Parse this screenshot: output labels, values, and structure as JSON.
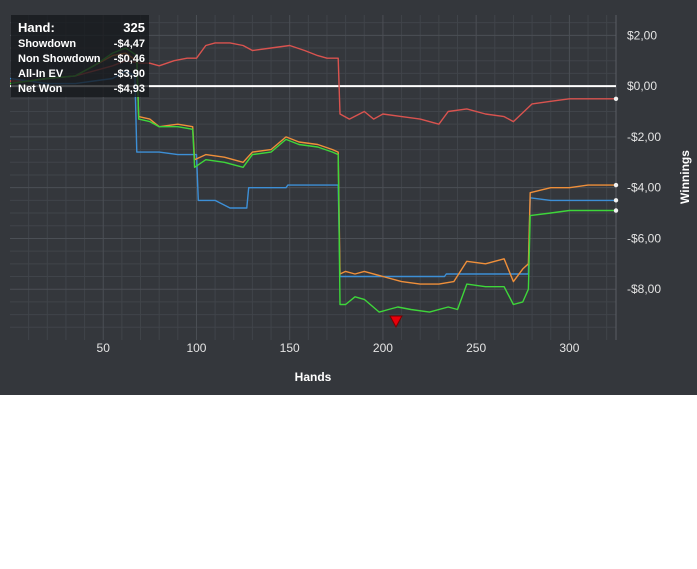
{
  "info_box": {
    "hand_label": "Hand:",
    "hand_value": "325",
    "rows": [
      {
        "label": "Showdown",
        "value": "-$4,47"
      },
      {
        "label": "Non Showdown",
        "value": "-$0,46"
      },
      {
        "label": "All-In EV",
        "value": "-$3,90"
      },
      {
        "label": "Net Won",
        "value": "-$4,93"
      }
    ]
  },
  "chart_data": {
    "type": "line",
    "xlabel": "Hands",
    "ylabel": "Winnings",
    "xlim": [
      0,
      325
    ],
    "ylim": [
      -10,
      2.8
    ],
    "x_ticks": [
      {
        "value": 50,
        "label": "50"
      },
      {
        "value": 100,
        "label": "100"
      },
      {
        "value": 150,
        "label": "150"
      },
      {
        "value": 200,
        "label": "200"
      },
      {
        "value": 250,
        "label": "250"
      },
      {
        "value": 300,
        "label": "300"
      }
    ],
    "y_ticks": [
      {
        "value": 2,
        "label": "$2,00"
      },
      {
        "value": 0,
        "label": "$0,00"
      },
      {
        "value": -2,
        "label": "-$2,00"
      },
      {
        "value": -4,
        "label": "-$4,00"
      },
      {
        "value": -6,
        "label": "-$6,00"
      },
      {
        "value": -8,
        "label": "-$8,00"
      }
    ],
    "grid": true,
    "legend": "none",
    "colors": {
      "background": "#34373c",
      "grid": "#4b4f55",
      "zero_line": "#ffffff",
      "showdown": "#3d8fd6",
      "non_showdown": "#d9534f",
      "all_in_ev": "#ef8f3a",
      "net_won": "#3ed63a",
      "marker": "#e8000b"
    },
    "series": [
      {
        "key": "non_showdown",
        "points": [
          [
            0,
            0.2
          ],
          [
            10,
            0.2
          ],
          [
            20,
            0.3
          ],
          [
            35,
            0.4
          ],
          [
            45,
            0.6
          ],
          [
            55,
            0.8
          ],
          [
            62,
            1.0
          ],
          [
            70,
            0.9
          ],
          [
            75,
            0.9
          ],
          [
            80,
            0.8
          ],
          [
            88,
            1.0
          ],
          [
            95,
            1.1
          ],
          [
            100,
            1.1
          ],
          [
            105,
            1.6
          ],
          [
            110,
            1.7
          ],
          [
            118,
            1.7
          ],
          [
            125,
            1.6
          ],
          [
            130,
            1.4
          ],
          [
            140,
            1.5
          ],
          [
            150,
            1.6
          ],
          [
            158,
            1.4
          ],
          [
            165,
            1.2
          ],
          [
            170,
            1.1
          ],
          [
            176,
            1.1
          ],
          [
            177,
            -1.1
          ],
          [
            182,
            -1.3
          ],
          [
            190,
            -1.0
          ],
          [
            195,
            -1.3
          ],
          [
            200,
            -1.1
          ],
          [
            210,
            -1.2
          ],
          [
            220,
            -1.3
          ],
          [
            230,
            -1.5
          ],
          [
            235,
            -1.0
          ],
          [
            245,
            -0.9
          ],
          [
            255,
            -1.1
          ],
          [
            265,
            -1.2
          ],
          [
            270,
            -1.4
          ],
          [
            280,
            -0.7
          ],
          [
            290,
            -0.6
          ],
          [
            300,
            -0.5
          ],
          [
            310,
            -0.5
          ],
          [
            325,
            -0.5
          ]
        ]
      },
      {
        "key": "showdown",
        "points": [
          [
            0,
            0.3
          ],
          [
            10,
            0.2
          ],
          [
            20,
            0.1
          ],
          [
            35,
            0.1
          ],
          [
            45,
            0.2
          ],
          [
            55,
            0.3
          ],
          [
            62,
            0.6
          ],
          [
            67,
            0.4
          ],
          [
            68,
            -2.6
          ],
          [
            80,
            -2.6
          ],
          [
            90,
            -2.7
          ],
          [
            100,
            -2.7
          ],
          [
            101,
            -4.5
          ],
          [
            110,
            -4.5
          ],
          [
            118,
            -4.8
          ],
          [
            127,
            -4.8
          ],
          [
            128,
            -4.0
          ],
          [
            135,
            -4.0
          ],
          [
            148,
            -4.0
          ],
          [
            149,
            -3.9
          ],
          [
            176,
            -3.9
          ],
          [
            177,
            -7.5
          ],
          [
            200,
            -7.5
          ],
          [
            220,
            -7.5
          ],
          [
            233,
            -7.5
          ],
          [
            234,
            -7.4
          ],
          [
            278,
            -7.4
          ],
          [
            279,
            -4.4
          ],
          [
            290,
            -4.5
          ],
          [
            310,
            -4.5
          ],
          [
            325,
            -4.5
          ]
        ]
      },
      {
        "key": "all_in_ev",
        "points": [
          [
            0,
            0.1
          ],
          [
            10,
            0.2
          ],
          [
            20,
            0.3
          ],
          [
            35,
            0.4
          ],
          [
            45,
            0.8
          ],
          [
            55,
            1.2
          ],
          [
            62,
            1.3
          ],
          [
            68,
            1.0
          ],
          [
            69,
            -1.2
          ],
          [
            75,
            -1.3
          ],
          [
            80,
            -1.6
          ],
          [
            90,
            -1.5
          ],
          [
            98,
            -1.6
          ],
          [
            99,
            -2.9
          ],
          [
            105,
            -2.7
          ],
          [
            115,
            -2.8
          ],
          [
            125,
            -3.0
          ],
          [
            130,
            -2.6
          ],
          [
            140,
            -2.5
          ],
          [
            148,
            -2.0
          ],
          [
            155,
            -2.2
          ],
          [
            165,
            -2.3
          ],
          [
            173,
            -2.5
          ],
          [
            176,
            -2.6
          ],
          [
            177,
            -7.4
          ],
          [
            180,
            -7.3
          ],
          [
            185,
            -7.4
          ],
          [
            190,
            -7.3
          ],
          [
            200,
            -7.5
          ],
          [
            210,
            -7.7
          ],
          [
            220,
            -7.8
          ],
          [
            230,
            -7.8
          ],
          [
            238,
            -7.7
          ],
          [
            245,
            -6.9
          ],
          [
            255,
            -7.0
          ],
          [
            265,
            -6.8
          ],
          [
            270,
            -7.7
          ],
          [
            275,
            -7.2
          ],
          [
            278,
            -7.0
          ],
          [
            279,
            -4.2
          ],
          [
            290,
            -4.0
          ],
          [
            300,
            -4.0
          ],
          [
            310,
            -3.9
          ],
          [
            325,
            -3.9
          ]
        ]
      },
      {
        "key": "net_won",
        "points": [
          [
            0,
            0.1
          ],
          [
            10,
            0.2
          ],
          [
            20,
            0.3
          ],
          [
            35,
            0.4
          ],
          [
            45,
            0.8
          ],
          [
            55,
            1.3
          ],
          [
            62,
            1.5
          ],
          [
            68,
            1.2
          ],
          [
            69,
            -1.3
          ],
          [
            75,
            -1.4
          ],
          [
            80,
            -1.6
          ],
          [
            90,
            -1.6
          ],
          [
            98,
            -1.7
          ],
          [
            99,
            -3.2
          ],
          [
            105,
            -2.9
          ],
          [
            115,
            -3.0
          ],
          [
            125,
            -3.2
          ],
          [
            130,
            -2.7
          ],
          [
            140,
            -2.6
          ],
          [
            148,
            -2.1
          ],
          [
            155,
            -2.3
          ],
          [
            165,
            -2.4
          ],
          [
            173,
            -2.6
          ],
          [
            176,
            -2.7
          ],
          [
            177,
            -8.6
          ],
          [
            180,
            -8.6
          ],
          [
            185,
            -8.3
          ],
          [
            190,
            -8.4
          ],
          [
            198,
            -8.9
          ],
          [
            203,
            -8.8
          ],
          [
            208,
            -8.7
          ],
          [
            215,
            -8.8
          ],
          [
            225,
            -8.9
          ],
          [
            235,
            -8.7
          ],
          [
            240,
            -8.8
          ],
          [
            245,
            -7.8
          ],
          [
            255,
            -7.9
          ],
          [
            265,
            -7.9
          ],
          [
            270,
            -8.6
          ],
          [
            275,
            -8.5
          ],
          [
            278,
            -8.0
          ],
          [
            279,
            -5.1
          ],
          [
            290,
            -5.0
          ],
          [
            300,
            -4.9
          ],
          [
            310,
            -4.9
          ],
          [
            325,
            -4.9
          ]
        ]
      }
    ],
    "markers": [
      {
        "x": 207,
        "y": -9.25,
        "shape": "triangle-down"
      }
    ]
  }
}
